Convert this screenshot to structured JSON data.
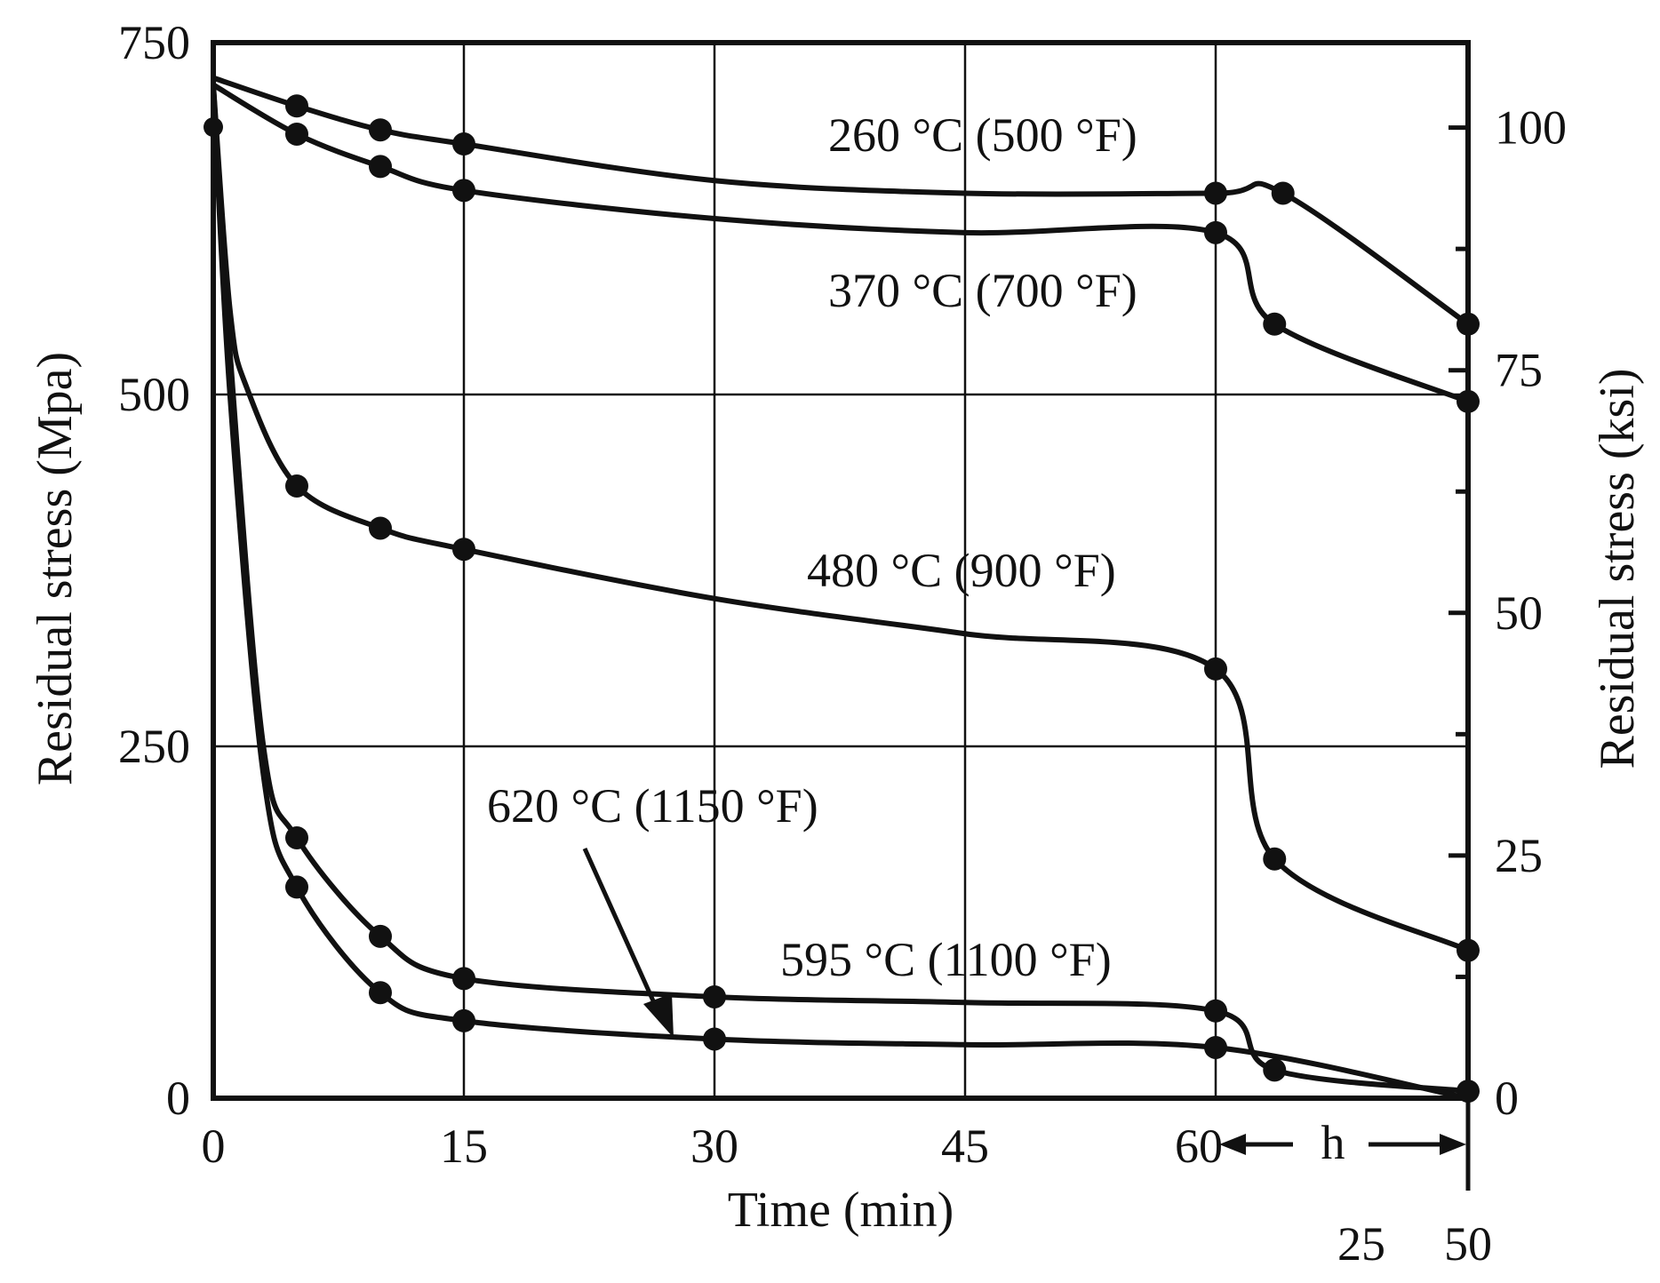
{
  "chart_data": {
    "type": "line",
    "xlabel": "Time (min)",
    "ylabel": "Residual stress (Mpa)",
    "y2label": "Residual stress (ksi)",
    "x_ticks": [
      "0",
      "15",
      "30",
      "45",
      "60"
    ],
    "x_hours_label": "h",
    "x_hours_ticks": [
      "25",
      "50"
    ],
    "y_ticks": [
      "0",
      "250",
      "500",
      "750"
    ],
    "y2_ticks": [
      "0",
      "25",
      "50",
      "75",
      "100"
    ],
    "ylim": [
      0,
      750
    ],
    "y2lim": [
      0,
      108.75
    ],
    "grid": true,
    "series": [
      {
        "name": "260 °C (500 °F)",
        "points": [
          [
            0,
            725
          ],
          [
            5,
            705
          ],
          [
            10,
            688
          ],
          [
            15,
            678
          ],
          [
            30,
            652
          ],
          [
            45,
            643
          ],
          [
            60,
            643
          ],
          [
            64,
            643
          ],
          [
            75,
            550
          ]
        ],
        "marker_index": [
          1,
          2,
          3,
          6,
          7,
          8
        ]
      },
      {
        "name": "370 °C (700 °F)",
        "points": [
          [
            0,
            720
          ],
          [
            5,
            685
          ],
          [
            10,
            662
          ],
          [
            15,
            645
          ],
          [
            30,
            625
          ],
          [
            45,
            615
          ],
          [
            60,
            615
          ],
          [
            63.5,
            550
          ],
          [
            75,
            495
          ]
        ],
        "marker_index": [
          1,
          2,
          3,
          6,
          7,
          8
        ]
      },
      {
        "name": "480 °C (900 °F)",
        "points": [
          [
            0,
            720
          ],
          [
            1,
            560
          ],
          [
            2,
            505
          ],
          [
            5,
            435
          ],
          [
            10,
            405
          ],
          [
            15,
            390
          ],
          [
            30,
            355
          ],
          [
            45,
            330
          ],
          [
            60,
            305
          ],
          [
            63.5,
            170
          ],
          [
            75,
            105
          ]
        ],
        "marker_index": [
          3,
          4,
          5,
          8,
          9,
          10
        ]
      },
      {
        "name": "595 °C (1100 °F)",
        "points": [
          [
            0,
            720
          ],
          [
            1,
            530
          ],
          [
            3,
            250
          ],
          [
            5,
            185
          ],
          [
            10,
            115
          ],
          [
            15,
            85
          ],
          [
            30,
            72
          ],
          [
            45,
            68
          ],
          [
            60,
            62
          ],
          [
            63.5,
            20
          ],
          [
            75,
            5
          ]
        ],
        "marker_index": [
          3,
          4,
          5,
          6,
          8,
          9,
          10
        ]
      },
      {
        "name": "620 °C (1150 °F)",
        "points": [
          [
            0,
            720
          ],
          [
            1,
            500
          ],
          [
            3,
            230
          ],
          [
            5,
            150
          ],
          [
            10,
            75
          ],
          [
            15,
            55
          ],
          [
            30,
            42
          ],
          [
            45,
            38
          ],
          [
            60,
            36
          ],
          [
            75,
            0
          ]
        ],
        "marker_index": [
          3,
          4,
          5,
          6,
          8
        ]
      }
    ],
    "extra_markers": [
      [
        0,
        690
      ]
    ]
  }
}
